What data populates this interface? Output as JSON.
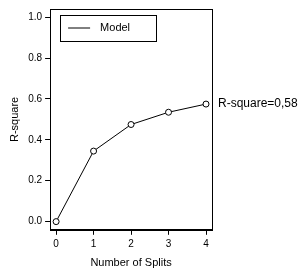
{
  "chart_data": {
    "type": "line",
    "x_label": "Number of Splits",
    "y_label": "R-square",
    "x": [
      0,
      1,
      2,
      3,
      4
    ],
    "series": [
      {
        "name": "Model",
        "color": "#000000",
        "marker": "circle",
        "line_style": "solid",
        "values": [
          0,
          0.345,
          0.475,
          0.535,
          0.575
        ]
      }
    ],
    "xlim": [
      -0.16,
      4.16
    ],
    "xticks": [
      0,
      1,
      2,
      3,
      4
    ],
    "ylim": [
      -0.04,
      1.04
    ],
    "yticks": [
      {
        "value": 0,
        "label": "0.0"
      },
      0.2,
      0.4,
      0.6,
      0.8,
      {
        "value": 1,
        "label": "1.0"
      }
    ],
    "grid": false,
    "legend": "top-left",
    "annotations": [
      {
        "text": "R-square=0,58"
      }
    ]
  }
}
